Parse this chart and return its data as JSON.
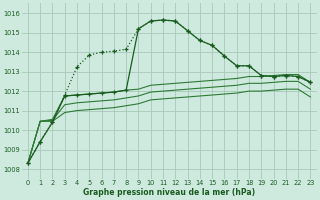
{
  "bg_color": "#ceeade",
  "grid_color": "#a8c8b8",
  "line_dark": "#1a5c20",
  "line_mid": "#2d7a35",
  "xlabel": "Graphe pression niveau de la mer (hPa)",
  "ylim": [
    1007.5,
    1016.5
  ],
  "xlim": [
    -0.5,
    23.5
  ],
  "yticks": [
    1008,
    1009,
    1010,
    1011,
    1012,
    1013,
    1014,
    1015,
    1016
  ],
  "xticks": [
    0,
    1,
    2,
    3,
    4,
    5,
    6,
    7,
    8,
    9,
    10,
    11,
    12,
    13,
    14,
    15,
    16,
    17,
    18,
    19,
    20,
    21,
    22,
    23
  ],
  "series_dotted": [
    1008.3,
    1009.4,
    1010.4,
    1011.8,
    1013.25,
    1013.85,
    1014.0,
    1014.05,
    1014.15,
    1015.2,
    1015.6,
    1015.65,
    1015.6,
    1015.1,
    1014.6,
    1014.35,
    1013.8,
    1013.3,
    1013.3,
    1012.8,
    1012.75,
    1012.8,
    1012.75,
    1012.45
  ],
  "series_solid": [
    1008.3,
    1009.4,
    1010.4,
    1011.75,
    1011.8,
    1011.85,
    1011.9,
    1011.95,
    1012.05,
    1015.2,
    1015.6,
    1015.65,
    1015.6,
    1015.1,
    1014.6,
    1014.35,
    1013.8,
    1013.3,
    1013.3,
    1012.8,
    1012.75,
    1012.8,
    1012.75,
    1012.45
  ],
  "band1": [
    1008.3,
    1010.45,
    1010.55,
    1011.75,
    1011.8,
    1011.85,
    1011.9,
    1011.95,
    1012.05,
    1012.1,
    1012.3,
    1012.35,
    1012.4,
    1012.45,
    1012.5,
    1012.55,
    1012.6,
    1012.65,
    1012.75,
    1012.75,
    1012.8,
    1012.85,
    1012.85,
    1012.45
  ],
  "band2": [
    1008.3,
    1010.45,
    1010.5,
    1011.3,
    1011.4,
    1011.45,
    1011.5,
    1011.55,
    1011.65,
    1011.75,
    1011.95,
    1012.0,
    1012.05,
    1012.1,
    1012.15,
    1012.2,
    1012.25,
    1012.3,
    1012.4,
    1012.4,
    1012.45,
    1012.5,
    1012.5,
    1012.1
  ],
  "band3": [
    1008.3,
    1010.45,
    1010.45,
    1010.9,
    1011.0,
    1011.05,
    1011.1,
    1011.15,
    1011.25,
    1011.35,
    1011.55,
    1011.6,
    1011.65,
    1011.7,
    1011.75,
    1011.8,
    1011.85,
    1011.9,
    1012.0,
    1012.0,
    1012.05,
    1012.1,
    1012.1,
    1011.7
  ]
}
